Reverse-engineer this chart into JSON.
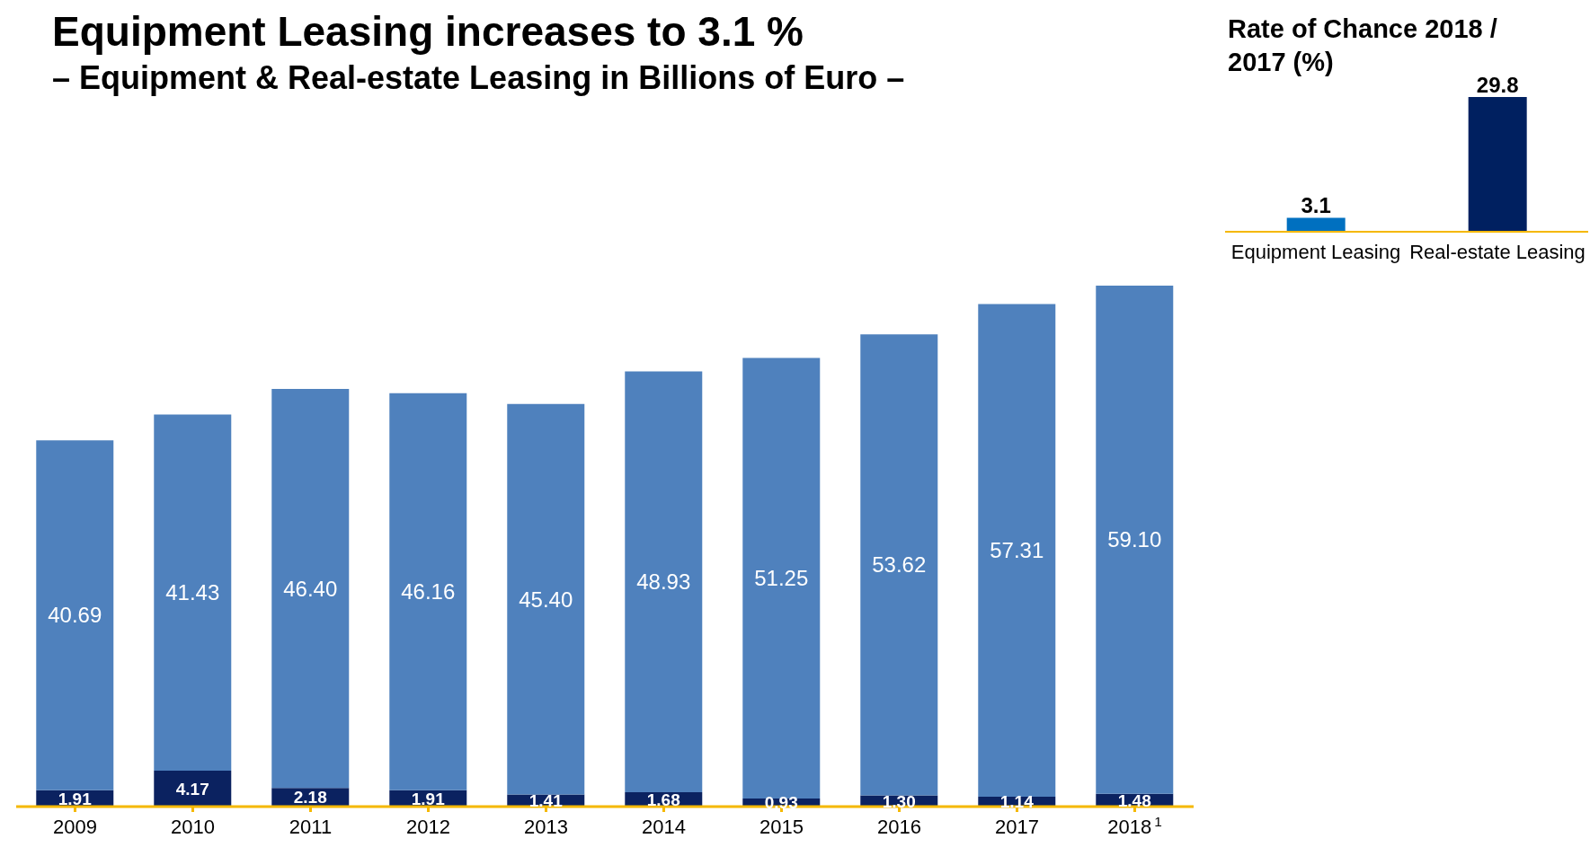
{
  "chart_data": [
    {
      "type": "bar",
      "title": "Equipment Leasing increases to 3.1 %",
      "subtitle": "– Equipment & Real-estate Leasing in Billions of Euro –",
      "categories": [
        "2009",
        "2010",
        "2011",
        "2012",
        "2013",
        "2014",
        "2015",
        "2016",
        "2017",
        "2018$^{1}$"
      ],
      "stacked": true,
      "series": [
        {
          "color": "#0b2260",
          "values": [
            1.91,
            4.17,
            2.18,
            1.91,
            1.41,
            1.68,
            0.93,
            1.3,
            1.14,
            1.48
          ],
          "value_labels": [
            "1.91",
            "4.17",
            "2.18",
            "1.91",
            "1.41",
            "1.68",
            "0.93",
            "1.30",
            "1.14",
            "1.48"
          ]
        },
        {
          "color": "#4f81bd",
          "values": [
            40.69,
            41.43,
            46.4,
            46.16,
            45.4,
            48.93,
            51.25,
            53.62,
            57.31,
            59.1
          ],
          "value_labels": [
            "40.69",
            "41.43",
            "46.40",
            "46.16",
            "45.40",
            "48.93",
            "51.25",
            "53.62",
            "57.31",
            "59.10"
          ]
        }
      ]
    },
    {
      "type": "bar",
      "title": "Rate of Chance 2018 / 2017 (%)",
      "categories": [
        "Equipment Leasing",
        "Real-estate Leasing"
      ],
      "values": [
        3.1,
        29.8
      ],
      "colors": [
        "#0070c0",
        "#002060"
      ],
      "data_labels": true
    }
  ]
}
